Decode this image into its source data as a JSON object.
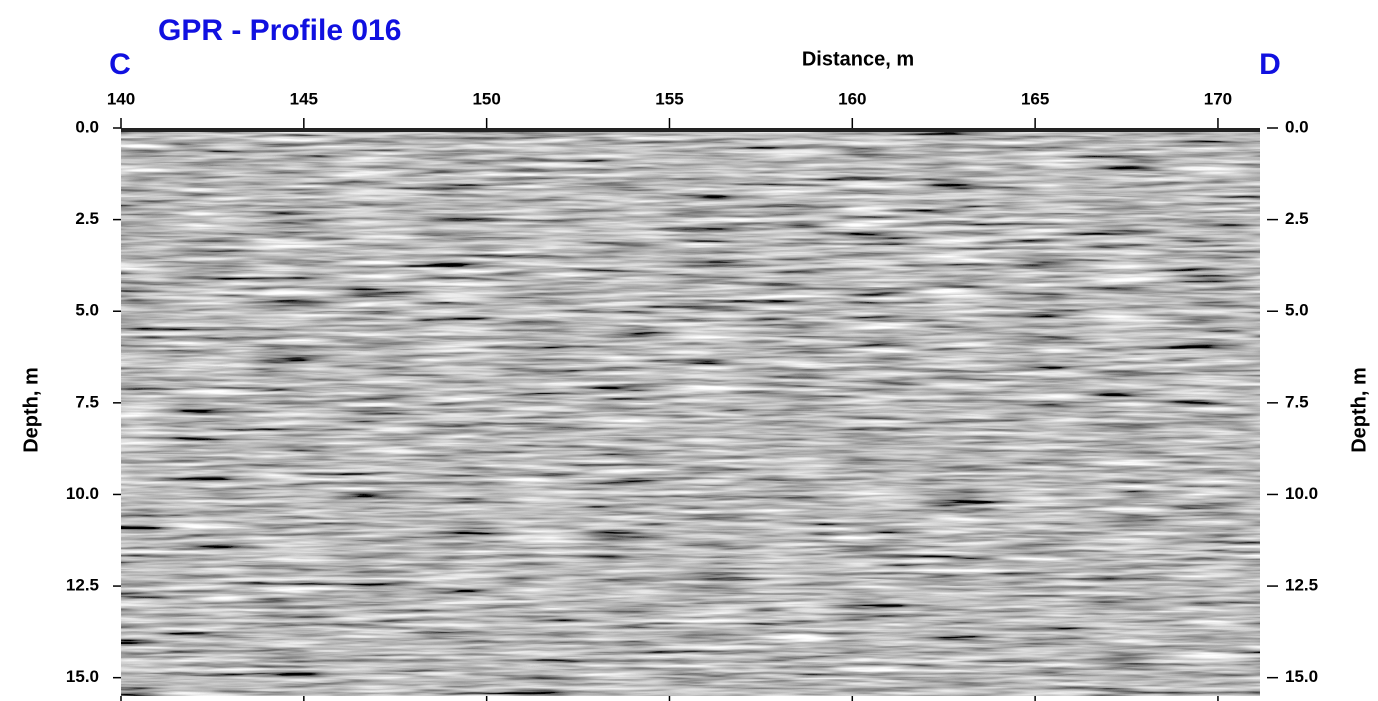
{
  "chart_data": {
    "type": "radargram",
    "title": "GPR - Profile 016",
    "start_label": "C",
    "end_label": "D",
    "x_label": "Distance, m",
    "y_label": "Depth, m",
    "xlim": [
      140,
      171.15
    ],
    "xticks": [
      140,
      145,
      150,
      155,
      160,
      165,
      170
    ],
    "ylim": [
      0,
      15.5
    ],
    "y_inverted": true,
    "yticks": [
      {
        "value": 0,
        "label": "0.0"
      },
      {
        "value": 2.5,
        "label": "2.5"
      },
      {
        "value": 5,
        "label": "5.0"
      },
      {
        "value": 7.5,
        "label": "7.5"
      },
      {
        "value": 10,
        "label": "10.0"
      },
      {
        "value": 12.5,
        "label": "12.5"
      },
      {
        "value": 15,
        "label": "15.0"
      }
    ],
    "title_color": "#1010e0"
  }
}
